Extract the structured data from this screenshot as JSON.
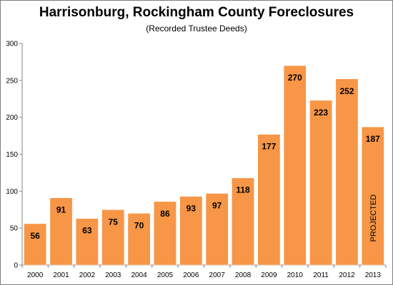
{
  "chart_data": {
    "type": "bar",
    "title": "Harrisonburg, Rockingham County Foreclosures",
    "subtitle": "(Recorded Trustee Deeds)",
    "xlabel": "",
    "ylabel": "",
    "categories": [
      "2000",
      "2001",
      "2002",
      "2003",
      "2004",
      "2005",
      "2006",
      "2007",
      "2008",
      "2009",
      "2010",
      "2011",
      "2012",
      "2013"
    ],
    "values": [
      56,
      91,
      63,
      75,
      70,
      86,
      93,
      97,
      118,
      177,
      270,
      223,
      252,
      187
    ],
    "ylim": [
      0,
      300
    ],
    "yticks": [
      0,
      50,
      100,
      150,
      200,
      250,
      300
    ],
    "grid": false,
    "legend": "none",
    "bar_color": "#F79646",
    "bar_border_color": "#FFFFFF",
    "annotations": [
      {
        "category": "2013",
        "text": "PROJECTED",
        "orientation": "vertical"
      }
    ]
  }
}
